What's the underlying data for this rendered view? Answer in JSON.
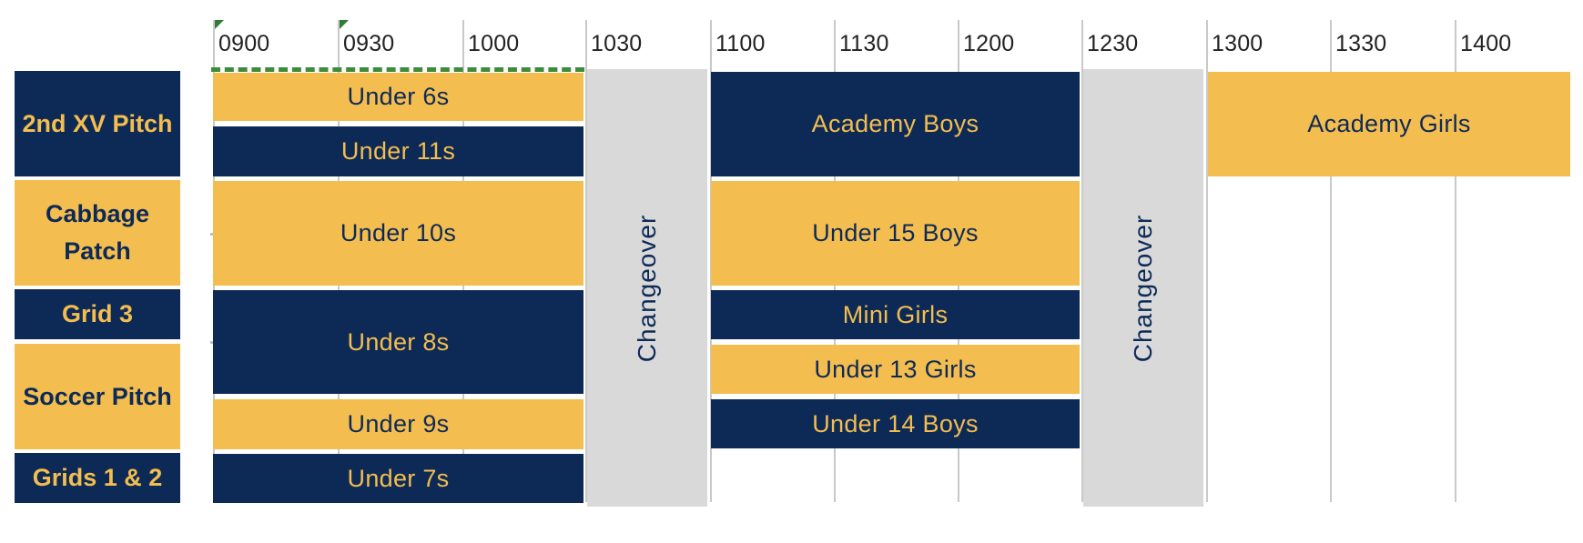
{
  "times": [
    "0900",
    "0930",
    "1000",
    "1030",
    "1100",
    "1130",
    "1200",
    "1230",
    "1300",
    "1330",
    "1400"
  ],
  "rows": {
    "r1": "2nd XV Pitch",
    "r2": "Cabbage Patch",
    "r3": "Grid 3",
    "r4": "Soccer Pitch",
    "r5": "Grids 1 & 2"
  },
  "sessions": {
    "under6s": "Under 6s",
    "under11s": "Under 11s",
    "under10s": "Under 10s",
    "under8s": "Under 8s",
    "under9s": "Under 9s",
    "under7s": "Under 7s",
    "academy_boys": "Academy Boys",
    "under15_boys": "Under 15 Boys",
    "mini_girls": "Mini Girls",
    "under13_girls": "Under 13 Girls",
    "under14_boys": "Under 14 Boys",
    "academy_girls": "Academy Girls"
  },
  "changeover": {
    "first": "Changeover",
    "second": "Changeover"
  },
  "colors": {
    "navy": "#0d2a57",
    "gold": "#f4bd4f",
    "changeover_grey": "#d9d9d9",
    "gridline": "#c9c9c9"
  }
}
